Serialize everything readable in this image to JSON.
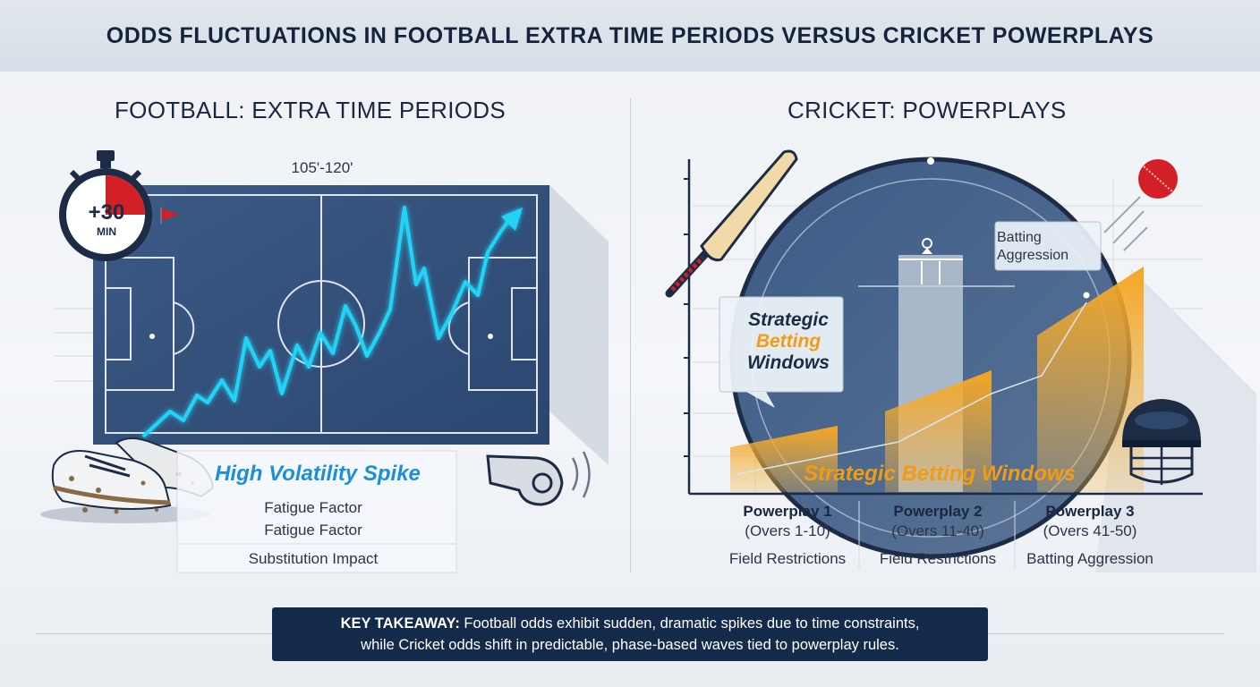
{
  "title": "ODDS FLUCTUATIONS IN FOOTBALL EXTRA TIME PERIODS VERSUS CRICKET POWERPLAYS",
  "football": {
    "heading": "FOOTBALL: EXTRA TIME PERIODS",
    "time_range": "105'-120'",
    "stopwatch_value": "+30",
    "stopwatch_unit": "MIN",
    "spike_label": "High Volatility Spike",
    "factors": [
      "Fatigue Factor",
      "Fatigue Factor",
      "Substitution Impact"
    ],
    "icons": [
      "stopwatch-icon",
      "flag-icon",
      "boots-icon",
      "whistle-icon"
    ]
  },
  "cricket": {
    "heading": "CRICKET: POWERPLAYS",
    "callout_strategic": [
      "Strategic",
      "Betting",
      "Windows"
    ],
    "callout_batting": [
      "Batting",
      "Aggression"
    ],
    "bottom_label": "Strategic Betting Windows",
    "powerplays": [
      {
        "name": "Powerplay 1",
        "overs": "(Overs 1-10)",
        "focus": "Field Restrictions"
      },
      {
        "name": "Powerplay 2",
        "overs": "(Overs 11-40)",
        "focus": "Field Restrictions"
      },
      {
        "name": "Powerplay 3",
        "overs": "(Overs 41-50)",
        "focus": "Batting Aggression"
      }
    ],
    "icons": [
      "bat-icon",
      "ball-icon",
      "helmet-icon"
    ]
  },
  "takeaway": {
    "label": "KEY TAKEAWAY:",
    "line1": "Football odds exhibit sudden, dramatic spikes due to time constraints,",
    "line2": "while Cricket odds shift in predictable, phase-based waves tied to powerplay rules."
  },
  "colors": {
    "navy": "#142a4a",
    "pitch": "#34507a",
    "cyan_line": "#22d3f5",
    "orange": "#f29c13",
    "red": "#d32027"
  }
}
